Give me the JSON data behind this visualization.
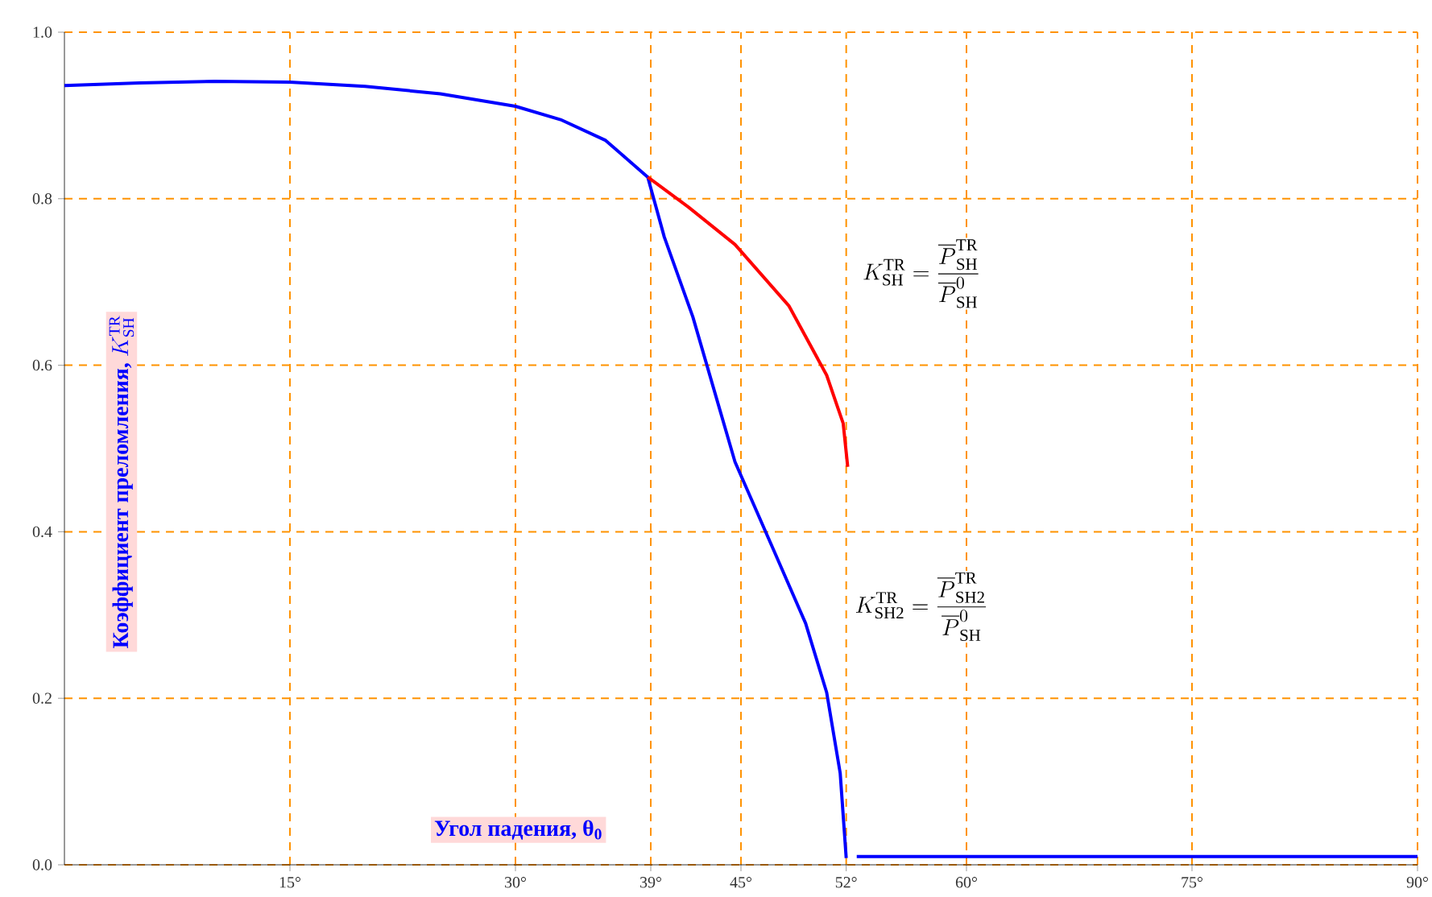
{
  "chart_data": {
    "type": "line",
    "xlabel": "Угол падения, θ$_{0}$",
    "ylabel": "\\mbox{Коэффициент преломления, }K_{\\mathrm{SH}}^{\\mathrm{TR}}",
    "annotations": [
      "K_{\\mathrm{SH}}^{\\mathrm{TR}}=\\frac{\\overline{P}_{\\mathrm{SH}}^{\\mathrm{TR}}}{\\overline{P}_{\\mathrm{SH}}^{0}}",
      "K_{\\mathrm{SH2}}^{\\mathrm{TR}}=\\frac{\\overline{P}_{\\mathrm{SH2}}^{\\mathrm{TR}}}{\\overline{P}_{\\mathrm{SH}}^{0}}"
    ],
    "series": [
      {
        "color": "#0000ff",
        "x": [
          0,
          5,
          10,
          15,
          20,
          25,
          30,
          33,
          36,
          38.8,
          39.9,
          41.8,
          44.6,
          47.1,
          49.3,
          50.7,
          51.6,
          52.0,
          52.3,
          52.7,
          90
        ],
        "values": [
          0.936,
          0.939,
          0.941,
          0.94,
          0.935,
          0.926,
          0.911,
          0.895,
          0.87,
          0.826,
          0.754,
          0.658,
          0.484,
          0.381,
          0.29,
          0.207,
          0.11,
          0.008,
          null,
          0.01,
          0.01
        ]
      },
      {
        "color": "#ff0000",
        "x": [
          38.8,
          41.5,
          44.6,
          48.2,
          50.7,
          51.8,
          52.1
        ],
        "values": [
          0.826,
          0.79,
          0.745,
          0.671,
          0.588,
          0.53,
          0.478
        ]
      }
    ],
    "xlim": [
      0,
      90
    ],
    "ylim": [
      0,
      1
    ],
    "xticks": [
      {
        "value": 15,
        "label": "15°"
      },
      {
        "value": 30,
        "label": "30°"
      },
      {
        "value": 39,
        "label": "39°"
      },
      {
        "value": 45,
        "label": "45°"
      },
      {
        "value": 52,
        "label": "52°"
      },
      {
        "value": 60,
        "label": "60°"
      },
      {
        "value": 75,
        "label": "75°"
      },
      {
        "value": 90,
        "label": "90°"
      }
    ],
    "yticks": [
      {
        "value": 0,
        "label": "0.0"
      },
      {
        "value": 0.2,
        "label": "0.2"
      },
      {
        "value": 0.4,
        "label": "0.4"
      },
      {
        "value": 0.6,
        "label": "0.6"
      },
      {
        "value": 0.8,
        "label": "0.8"
      },
      {
        "value": 1,
        "label": "1.0"
      }
    ],
    "grid": true,
    "marker": "none",
    "line_style": "solid"
  }
}
